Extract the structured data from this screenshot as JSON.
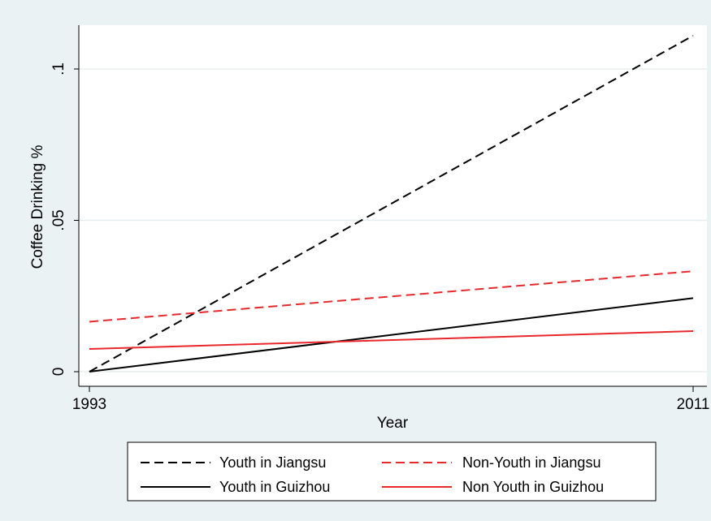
{
  "chart_data": {
    "type": "line",
    "title": "",
    "xlabel": "Year",
    "ylabel": "Coffee Drinking %",
    "x": [
      1993,
      2011
    ],
    "xlim": [
      1993,
      2011
    ],
    "ylim": [
      0,
      0.1
    ],
    "x_ticks": [
      {
        "value": 1993,
        "label": "1993"
      },
      {
        "value": 2011,
        "label": "2011"
      }
    ],
    "y_ticks": [
      {
        "value": 0,
        "label": "0"
      },
      {
        "value": 0.05,
        "label": ".05"
      },
      {
        "value": 0.1,
        "label": ".1"
      }
    ],
    "grid": true,
    "legend_position": "bottom",
    "series": [
      {
        "name": "Youth in Jiangsu",
        "values": [
          0.0,
          0.111
        ],
        "color": "#000000",
        "dash": "dashed"
      },
      {
        "name": "Non-Youth in Jiangsu",
        "values": [
          0.0165,
          0.0332
        ],
        "color": "#e8282b",
        "dash": "dashed"
      },
      {
        "name": "Youth in Guizhou",
        "values": [
          0.0,
          0.0243
        ],
        "color": "#000000",
        "dash": "solid"
      },
      {
        "name": "Non Youth in Guizhou",
        "values": [
          0.0075,
          0.0134
        ],
        "color": "#e8282b",
        "dash": "solid"
      }
    ]
  }
}
